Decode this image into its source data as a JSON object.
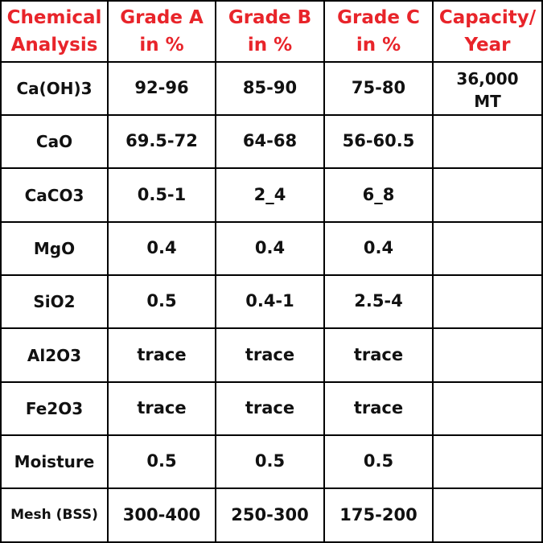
{
  "header": {
    "analysis_line1": "Chemical",
    "analysis_line2": "Analysis",
    "grade_a_line1": "Grade A",
    "grade_a_line2": "in %",
    "grade_b_line1": "Grade B",
    "grade_b_line2": "in %",
    "grade_c_line1": "Grade C",
    "grade_c_line2": "in %",
    "capacity_line1": "Capacity/",
    "capacity_line2": "Year"
  },
  "capacity": {
    "line1": "36,000",
    "line2": "MT"
  },
  "rows": [
    {
      "name": "Ca(OH)3",
      "a": "92-96",
      "b": "85-90",
      "c": "75-80"
    },
    {
      "name": "CaO",
      "a": "69.5-72",
      "b": "64-68",
      "c": "56-60.5"
    },
    {
      "name": "CaCO3",
      "a": "0.5-1",
      "b": "2_4",
      "c": "6_8"
    },
    {
      "name": "MgO",
      "a": "0.4",
      "b": "0.4",
      "c": "0.4"
    },
    {
      "name": "SiO2",
      "a": "0.5",
      "b": "0.4-1",
      "c": "2.5-4"
    },
    {
      "name": "Al2O3",
      "a": "trace",
      "b": "trace",
      "c": "trace"
    },
    {
      "name": "Fe2O3",
      "a": "trace",
      "b": "trace",
      "c": "trace"
    },
    {
      "name": "Moisture",
      "a": "0.5",
      "b": "0.5",
      "c": "0.5"
    },
    {
      "name": "Mesh (BSS)",
      "a": "300-400",
      "b": "250-300",
      "c": "175-200"
    }
  ],
  "colors": {
    "header_text": "#e8242a",
    "body_text": "#111111",
    "border": "#000000",
    "background": "#ffffff"
  }
}
